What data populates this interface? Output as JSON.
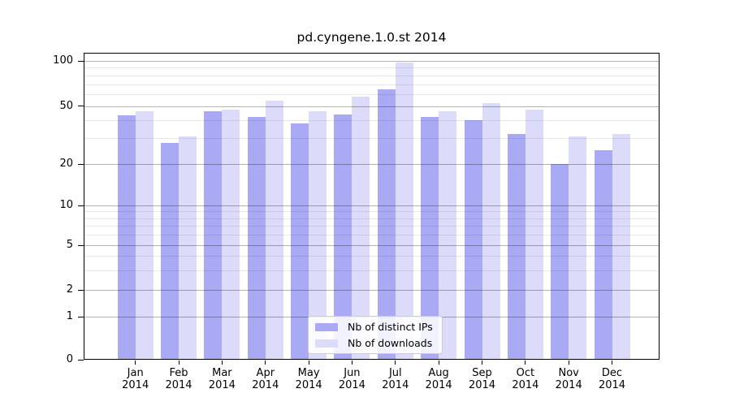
{
  "chart_data": {
    "type": "bar",
    "title": "pd.cyngene.1.0.st 2014",
    "categories": [
      "Jan",
      "Feb",
      "Mar",
      "Apr",
      "May",
      "Jun",
      "Jul",
      "Aug",
      "Sep",
      "Oct",
      "Nov",
      "Dec"
    ],
    "category_year": "2014",
    "series": [
      {
        "name": "Nb of distinct IPs",
        "color": "#a9a9f4",
        "values": [
          43,
          28,
          46,
          42,
          38,
          44,
          65,
          42,
          40,
          32,
          20,
          25
        ]
      },
      {
        "name": "Nb of downloads",
        "color": "#dcdcfa",
        "values": [
          46,
          31,
          47,
          54,
          46,
          58,
          97,
          46,
          52,
          47,
          31,
          32
        ]
      }
    ],
    "xlabel": "",
    "ylabel": "",
    "y_axis": {
      "scale": "log-like (0,1,2,5,10,20,50,100)",
      "ticks": [
        0,
        1,
        2,
        5,
        10,
        20,
        50,
        100
      ],
      "minor_ticks": [
        3,
        4,
        6,
        7,
        8,
        9,
        30,
        40,
        60,
        70,
        80,
        90
      ]
    },
    "grid": true,
    "legend_position": "bottom-center"
  }
}
